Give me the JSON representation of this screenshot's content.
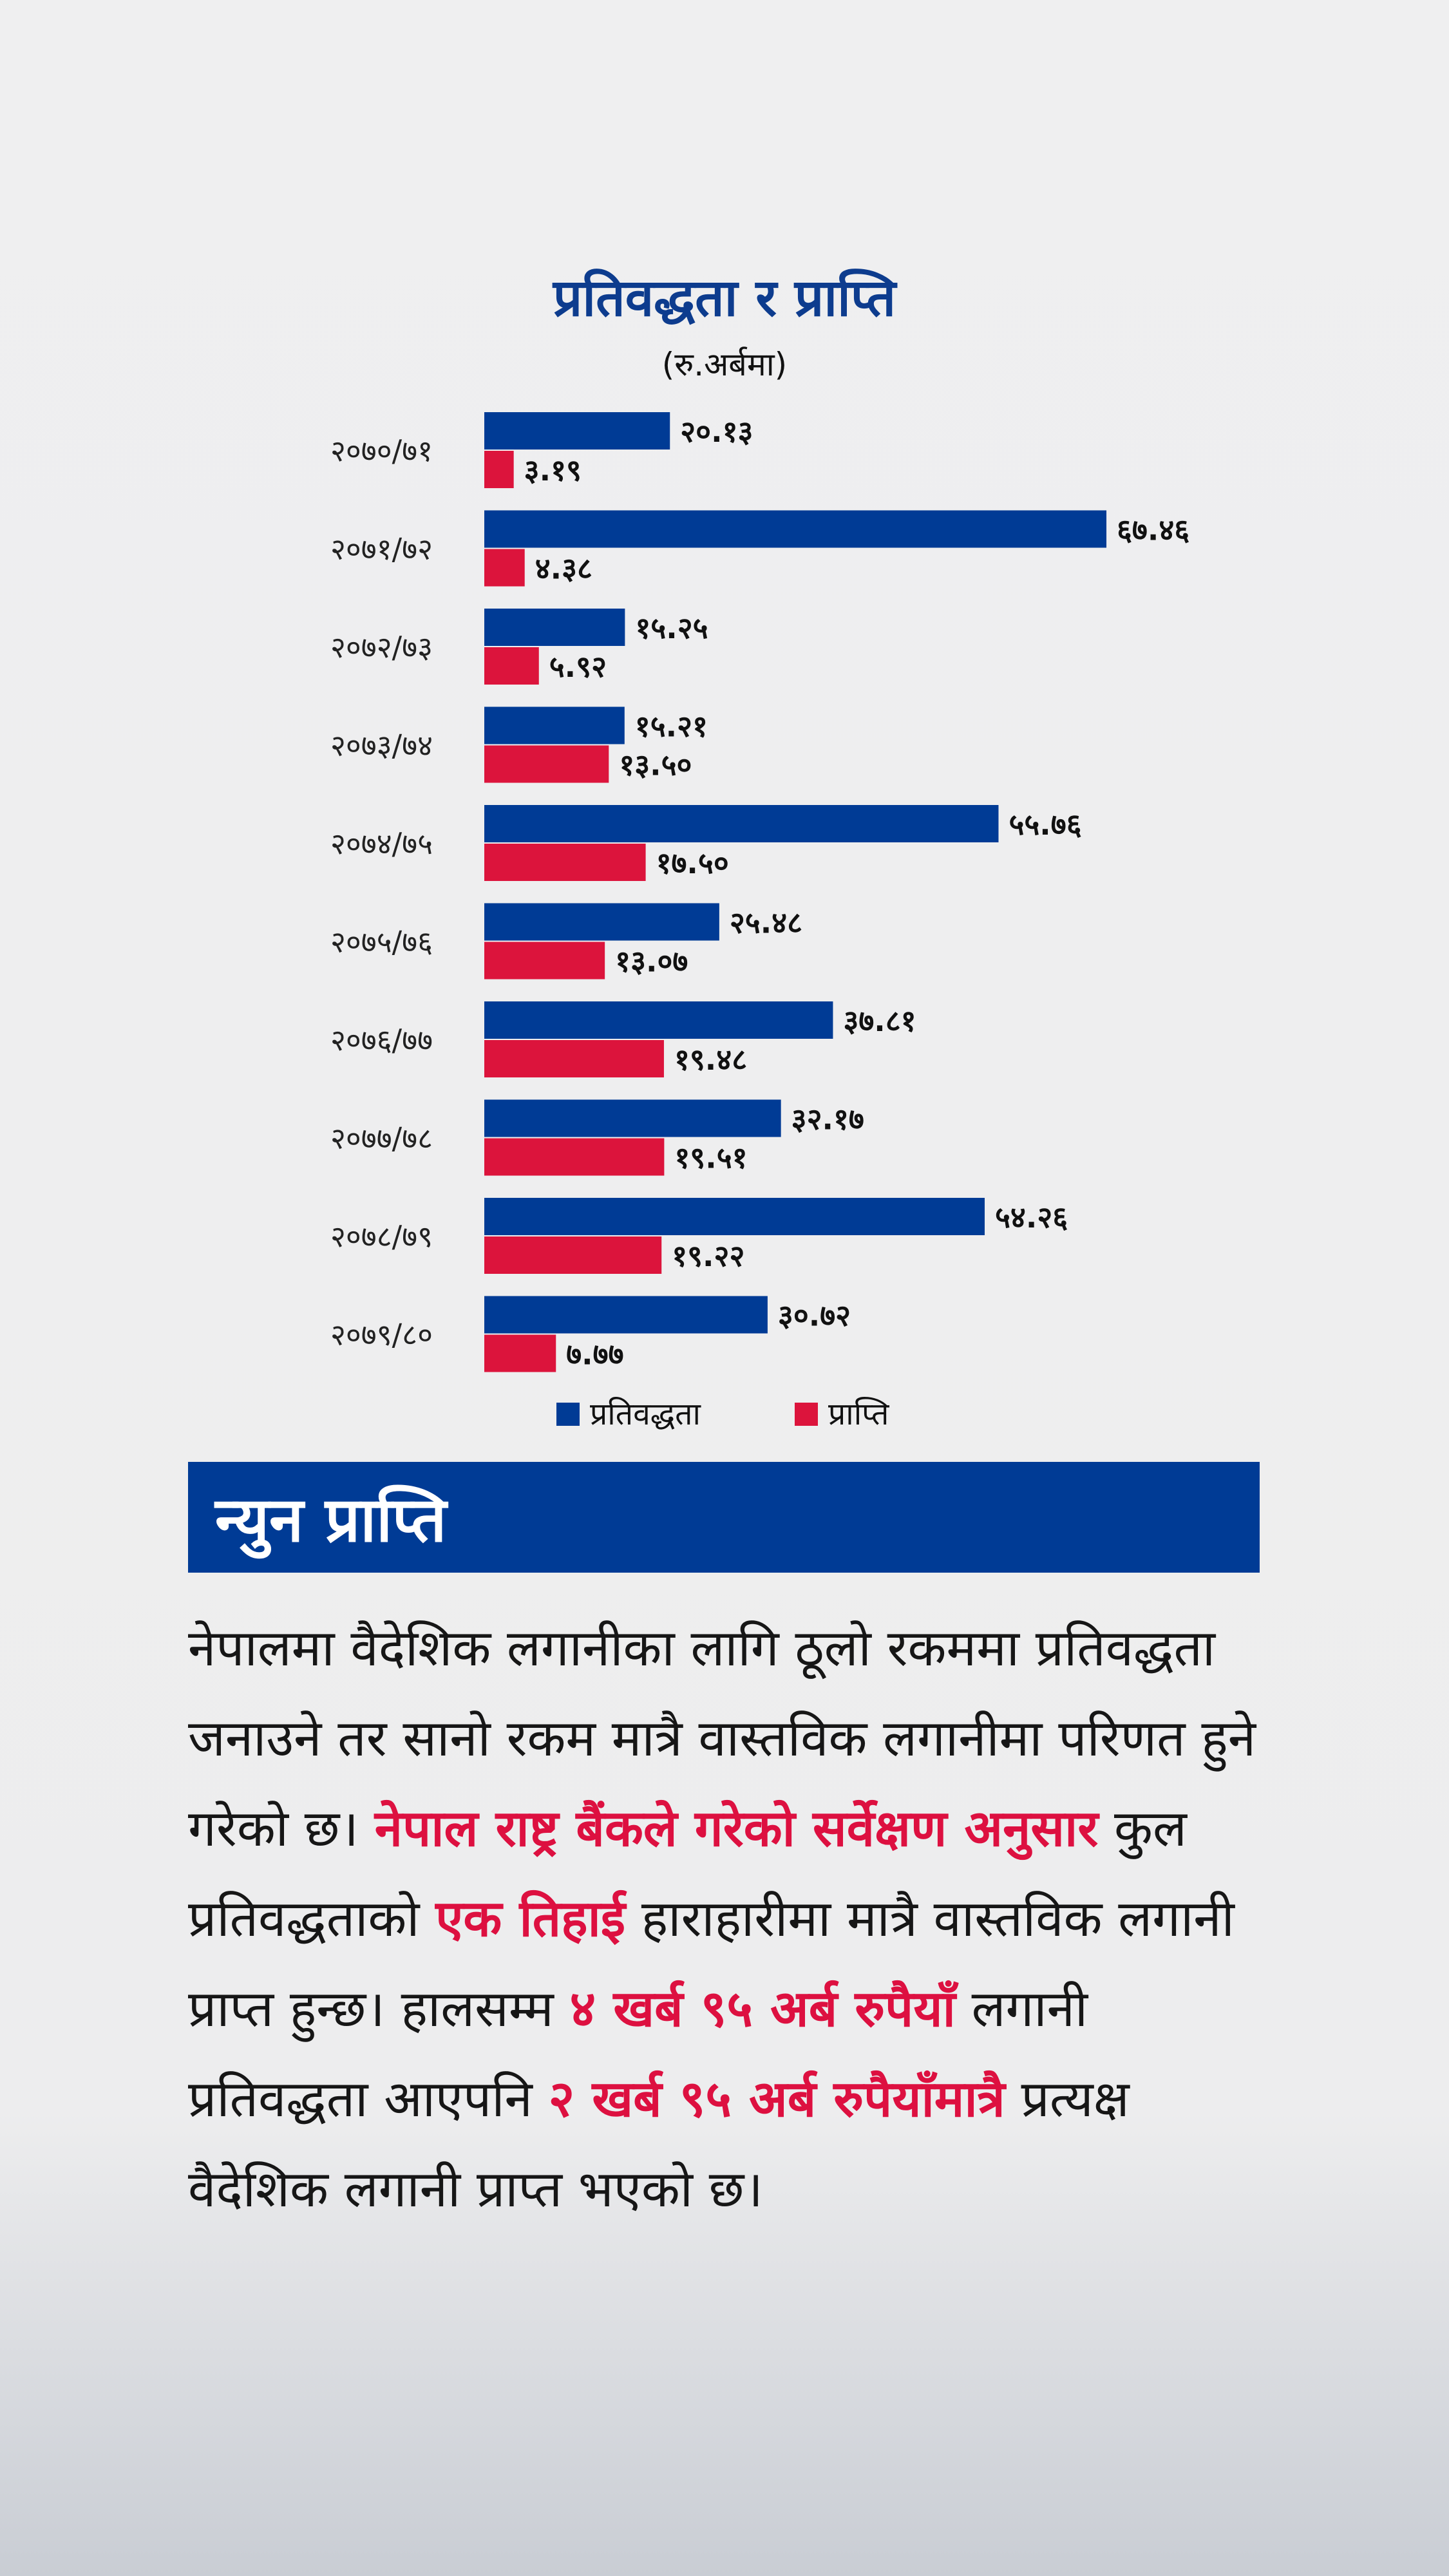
{
  "chart_data": {
    "type": "bar",
    "orientation": "horizontal",
    "title": "प्रतिवद्धता र प्राप्ति",
    "subtitle": "(रु.अर्बमा)",
    "categories": [
      "२०७०/७१",
      "२०७१/७२",
      "२०७२/७३",
      "२०७३/७४",
      "२०७४/७५",
      "२०७५/७६",
      "२०७६/७७",
      "२०७७/७८",
      "२०७८/७९",
      "२०७९/८०"
    ],
    "series": [
      {
        "name": "प्रतिवद्धता",
        "color": "#003b95",
        "values": [
          20.13,
          67.46,
          15.25,
          15.21,
          55.76,
          25.48,
          37.81,
          32.17,
          54.26,
          30.72
        ],
        "labels": [
          "२०.१३",
          "६७.४६",
          "१५.२५",
          "१५.२१",
          "५५.७६",
          "२५.४८",
          "३७.८१",
          "३२.१७",
          "५४.२६",
          "३०.७२"
        ]
      },
      {
        "name": "प्राप्ति",
        "color": "#dc143c",
        "values": [
          3.19,
          4.38,
          5.92,
          13.5,
          17.5,
          13.07,
          19.48,
          19.51,
          19.22,
          7.77
        ],
        "labels": [
          "३.१९",
          "४.३८",
          "५.९२",
          "१३.५०",
          "१७.५०",
          "१३.०७",
          "१९.४८",
          "१९.५१",
          "१९.२२",
          "७.७७"
        ]
      }
    ],
    "xlim": [
      0,
      70
    ],
    "grid": false,
    "legend": "bottom-center"
  },
  "section": {
    "heading": "न्युन प्राप्ति",
    "paragraph": [
      {
        "text": "नेपालमा वैदेशिक लगानीका लागि ठूलो रकममा प्रतिवद्धता जनाउने तर सानो रकम मात्रै वास्तविक लगानीमा परिणत हुने गरेको छ। ",
        "highlight": false
      },
      {
        "text": "नेपाल राष्ट्र बैंकले गरेको सर्वेक्षण अनुसार",
        "highlight": true
      },
      {
        "text": " कुल प्रतिवद्धताको ",
        "highlight": false
      },
      {
        "text": "एक तिहाई",
        "highlight": true
      },
      {
        "text": " हाराहारीमा मात्रै वास्तविक लगानी प्राप्त हुन्छ। हालसम्म ",
        "highlight": false
      },
      {
        "text": "४ खर्ब ९५ अर्ब रुपैयाँ",
        "highlight": true
      },
      {
        "text": " लगानी प्रतिवद्धता आएपनि ",
        "highlight": false
      },
      {
        "text": "२ खर्ब ९५ अर्ब रुपैयाँमात्रै",
        "highlight": true
      },
      {
        "text": " प्रत्यक्ष वैदेशिक लगानी प्राप्त भएको छ।",
        "highlight": false
      }
    ]
  }
}
